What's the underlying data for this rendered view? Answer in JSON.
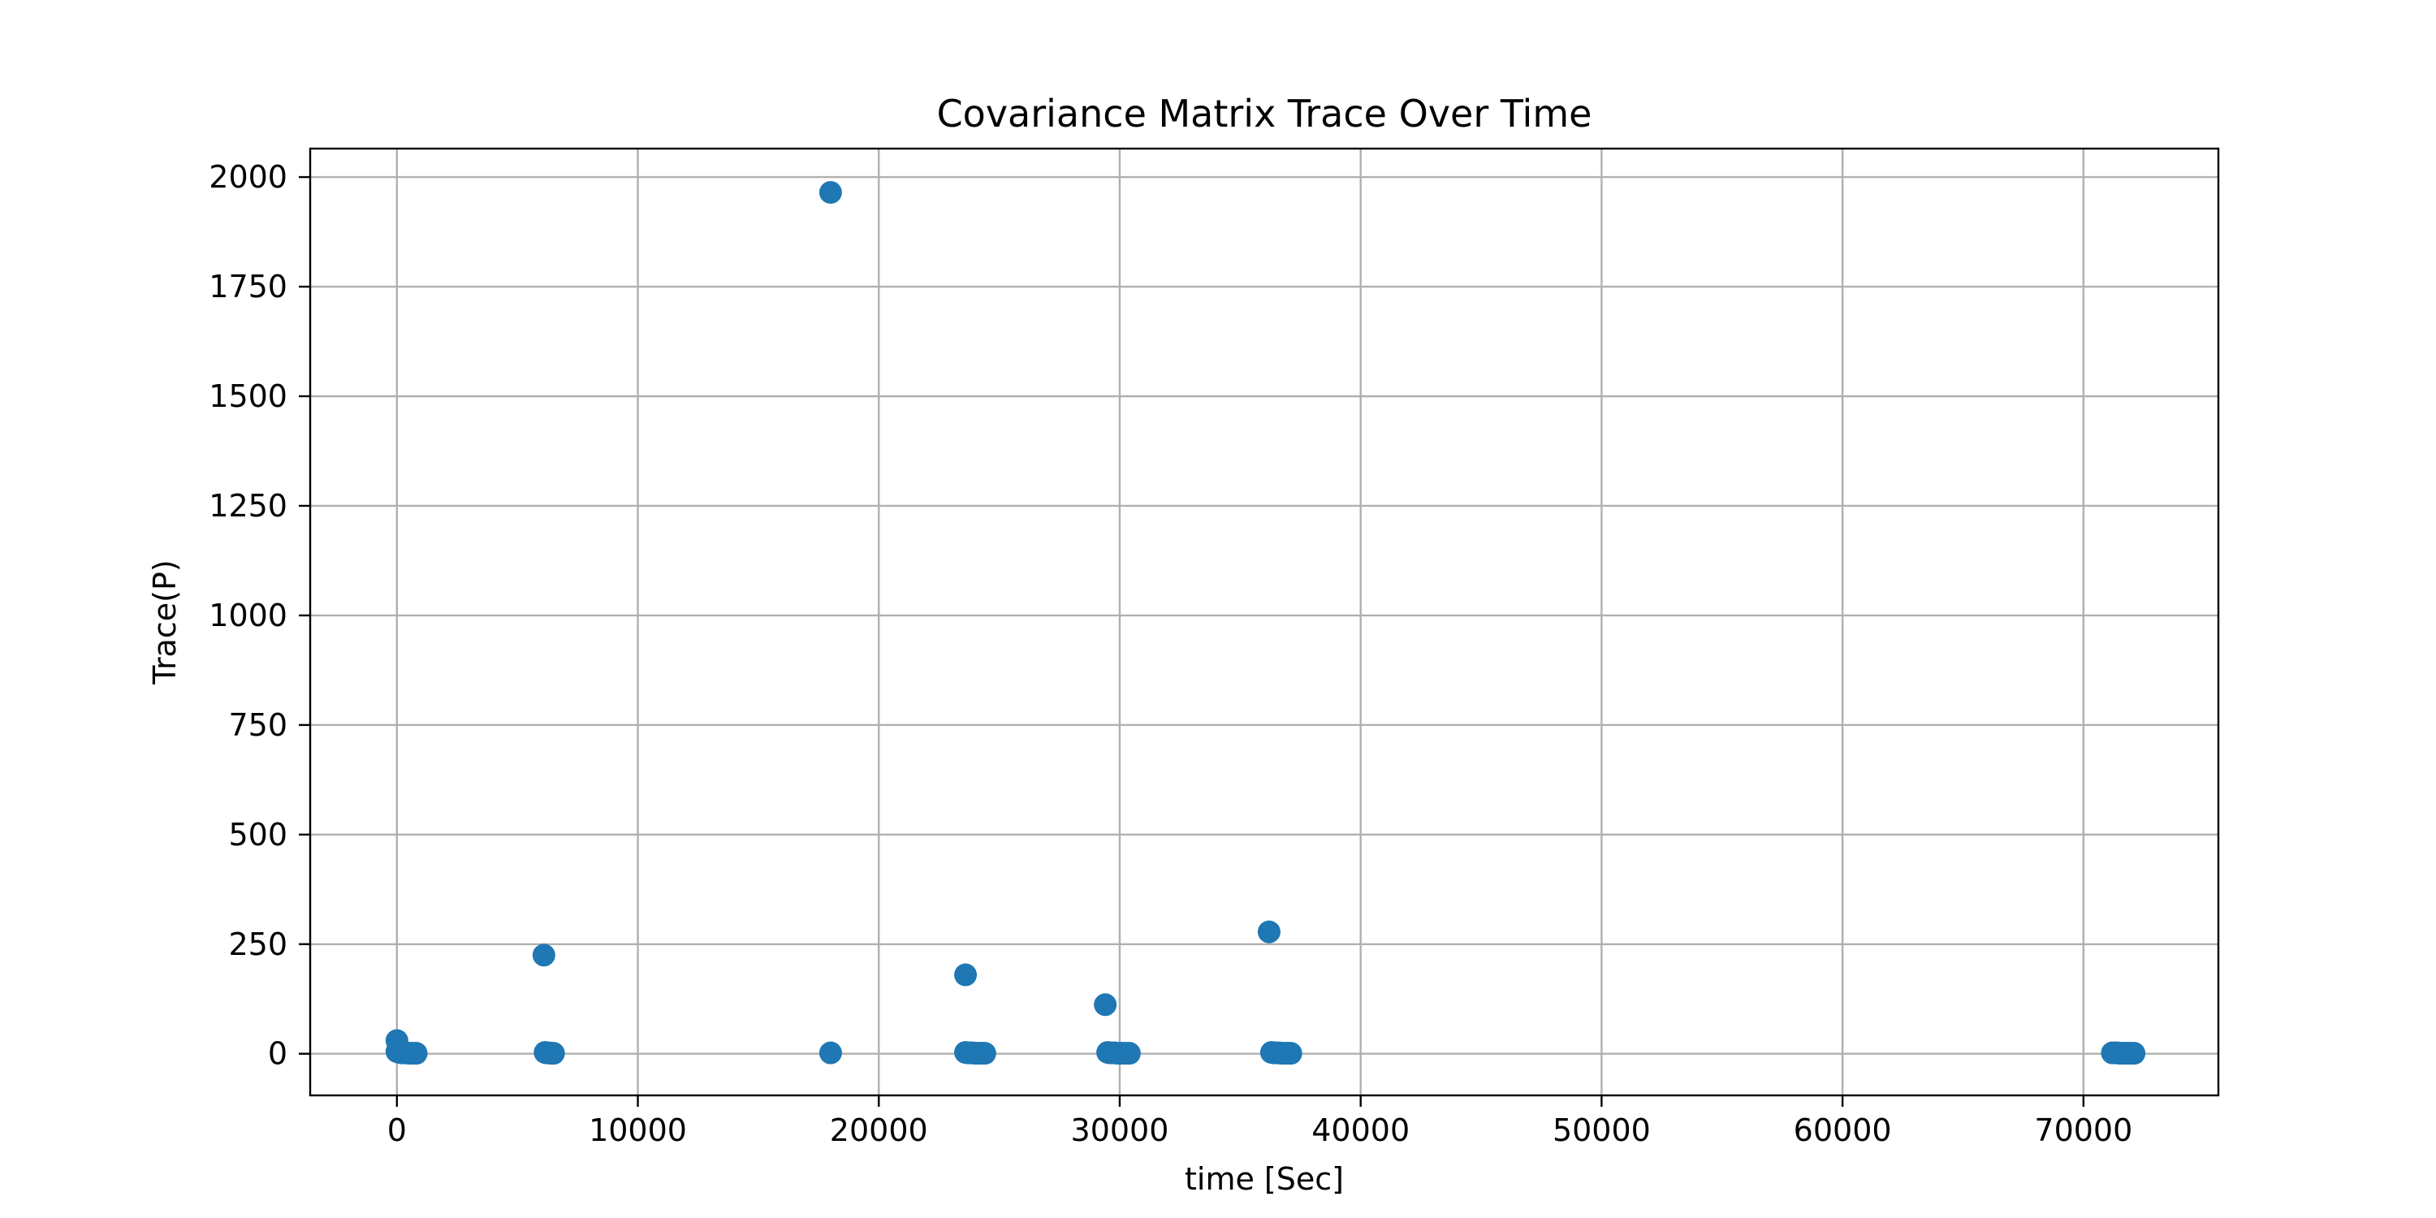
{
  "chart_data": {
    "type": "scatter",
    "title": "Covariance Matrix Trace Over Time",
    "xlabel": "time [Sec]",
    "ylabel": "Trace(P)",
    "xlim": [
      -3600,
      75600
    ],
    "ylim": [
      -95,
      2065
    ],
    "xticks": [
      0,
      10000,
      20000,
      30000,
      40000,
      50000,
      60000,
      70000
    ],
    "yticks": [
      0,
      250,
      500,
      750,
      1000,
      1250,
      1500,
      1750,
      2000
    ],
    "grid": true,
    "marker_color": "#1f77b4",
    "series": [
      {
        "name": "Trace(P)",
        "x": [
          0,
          0,
          100,
          200,
          300,
          400,
          500,
          600,
          700,
          800,
          6100,
          6150,
          6200,
          6300,
          6400,
          6500,
          18000,
          18000,
          23600,
          23600,
          23700,
          23800,
          23900,
          24000,
          24100,
          24200,
          24300,
          24400,
          29400,
          29500,
          29600,
          29700,
          29800,
          29900,
          30000,
          30100,
          30200,
          30300,
          30400,
          36200,
          36300,
          36400,
          36500,
          36600,
          36700,
          36800,
          36900,
          37000,
          37100,
          71200,
          71300,
          71400,
          71500,
          71600,
          71700,
          71800,
          71900,
          72000,
          72100
        ],
        "y": [
          30,
          5,
          3,
          2,
          2,
          2,
          1,
          1,
          1,
          1,
          225,
          3,
          2,
          2,
          1,
          1,
          1965,
          2,
          180,
          3,
          2,
          2,
          2,
          1,
          1,
          1,
          1,
          1,
          112,
          3,
          2,
          2,
          2,
          1,
          1,
          1,
          1,
          1,
          1,
          278,
          3,
          2,
          2,
          2,
          1,
          1,
          1,
          1,
          1,
          2,
          2,
          2,
          1,
          1,
          1,
          1,
          1,
          1,
          1
        ]
      }
    ]
  }
}
